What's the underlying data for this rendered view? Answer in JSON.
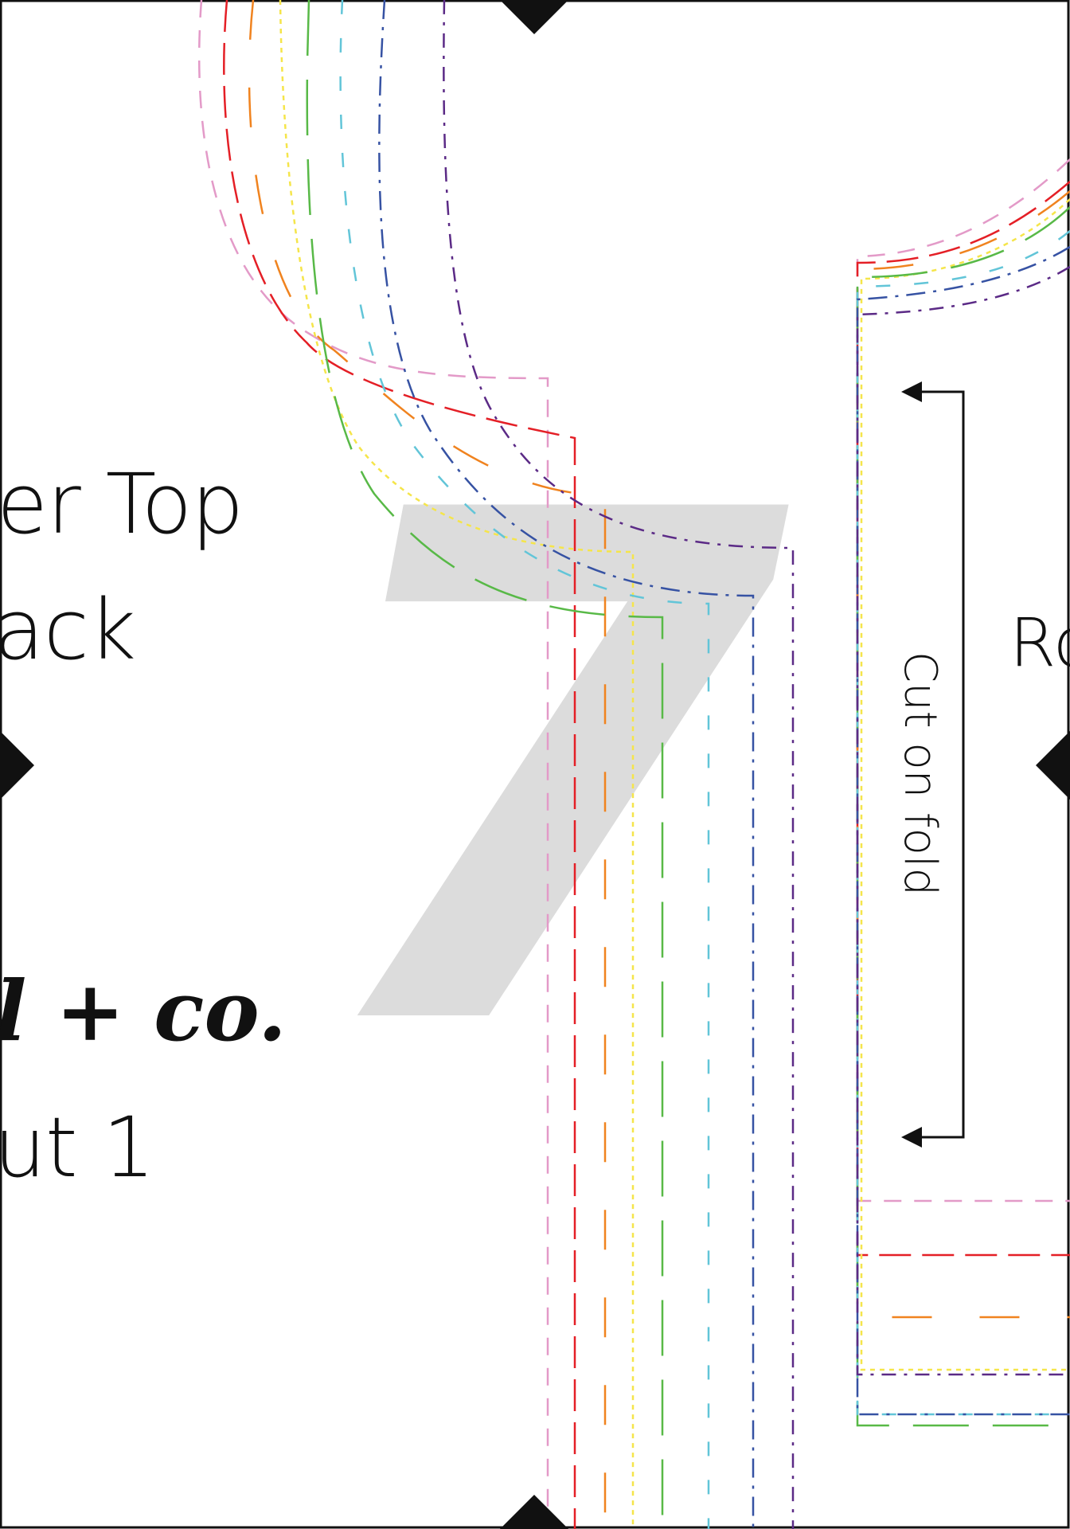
{
  "page": {
    "number": "7",
    "title_line1": "er Top",
    "title_line2": "ack",
    "brand": "l + co.",
    "cut_instruction": "ut 1",
    "fold_label": "Cut on fold",
    "side_label": "Ro"
  },
  "colors": {
    "border": "#111111",
    "page_number": "#dcdcdc",
    "sizes": [
      "#e39ac8",
      "#e41f26",
      "#f0831f",
      "#f5e54a",
      "#58b947",
      "#62c5d8",
      "#3652a3",
      "#5b2a86"
    ]
  },
  "icons": [
    "alignment-diamond-marker",
    "double-arrow"
  ]
}
